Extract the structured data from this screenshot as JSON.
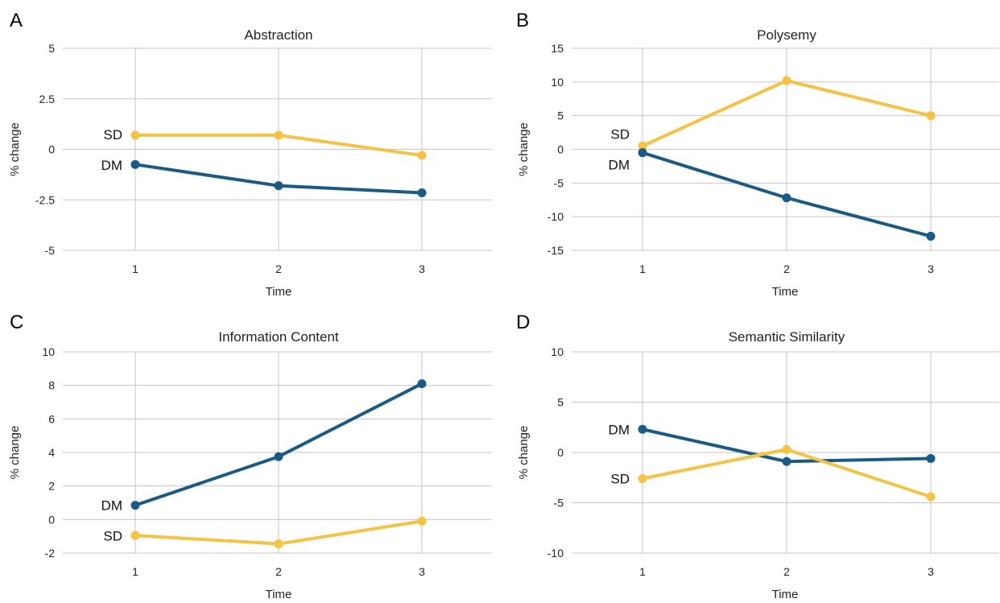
{
  "colors": {
    "SD": "#f6c244",
    "DM": "#195b85"
  },
  "chart_data": [
    {
      "panel": "A",
      "type": "line",
      "title": "Abstraction",
      "xlabel": "Time",
      "ylabel": "% change",
      "categories": [
        "1",
        "2",
        "3"
      ],
      "ylim": [
        -5,
        5
      ],
      "yticks": [
        5,
        2.5,
        0,
        -2.5,
        -5
      ],
      "ytick_labels": [
        "5",
        "2.5",
        "0",
        "-2.5",
        "-5"
      ],
      "grid": true,
      "series": [
        {
          "name": "SD",
          "values": [
            0.7,
            0.7,
            -0.3
          ]
        },
        {
          "name": "DM",
          "values": [
            -0.75,
            -1.8,
            -2.15
          ]
        }
      ]
    },
    {
      "panel": "B",
      "type": "line",
      "title": "Polysemy",
      "xlabel": "Time",
      "ylabel": "% change",
      "categories": [
        "1",
        "2",
        "3"
      ],
      "ylim": [
        -15,
        15
      ],
      "yticks": [
        15,
        10,
        5,
        0,
        -5,
        -10,
        -15
      ],
      "ytick_labels": [
        "15",
        "10",
        "5",
        "0",
        "-5",
        "-10",
        "-15"
      ],
      "grid": true,
      "series": [
        {
          "name": "SD",
          "values": [
            0.5,
            10.2,
            5.0
          ]
        },
        {
          "name": "DM",
          "values": [
            -0.5,
            -7.2,
            -12.9
          ]
        }
      ]
    },
    {
      "panel": "C",
      "type": "line",
      "title": "Information Content",
      "xlabel": "Time",
      "ylabel": "% change",
      "categories": [
        "1",
        "2",
        "3"
      ],
      "ylim": [
        -2,
        10
      ],
      "yticks": [
        10,
        8,
        6,
        4,
        2,
        0,
        -2
      ],
      "ytick_labels": [
        "10",
        "8",
        "6",
        "4",
        "2",
        "0",
        "-2"
      ],
      "grid": true,
      "series": [
        {
          "name": "DM",
          "values": [
            0.85,
            3.75,
            8.1
          ]
        },
        {
          "name": "SD",
          "values": [
            -0.95,
            -1.45,
            -0.1
          ]
        }
      ]
    },
    {
      "panel": "D",
      "type": "line",
      "title": "Semantic Similarity",
      "xlabel": "Time",
      "ylabel": "% change",
      "categories": [
        "1",
        "2",
        "3"
      ],
      "ylim": [
        -10,
        10
      ],
      "yticks": [
        10,
        5,
        0,
        -5,
        -10
      ],
      "ytick_labels": [
        "10",
        "5",
        "0",
        "-5",
        "-10"
      ],
      "grid": true,
      "series": [
        {
          "name": "DM",
          "values": [
            2.3,
            -0.9,
            -0.6
          ]
        },
        {
          "name": "SD",
          "values": [
            -2.6,
            0.3,
            -4.4
          ]
        }
      ]
    }
  ]
}
